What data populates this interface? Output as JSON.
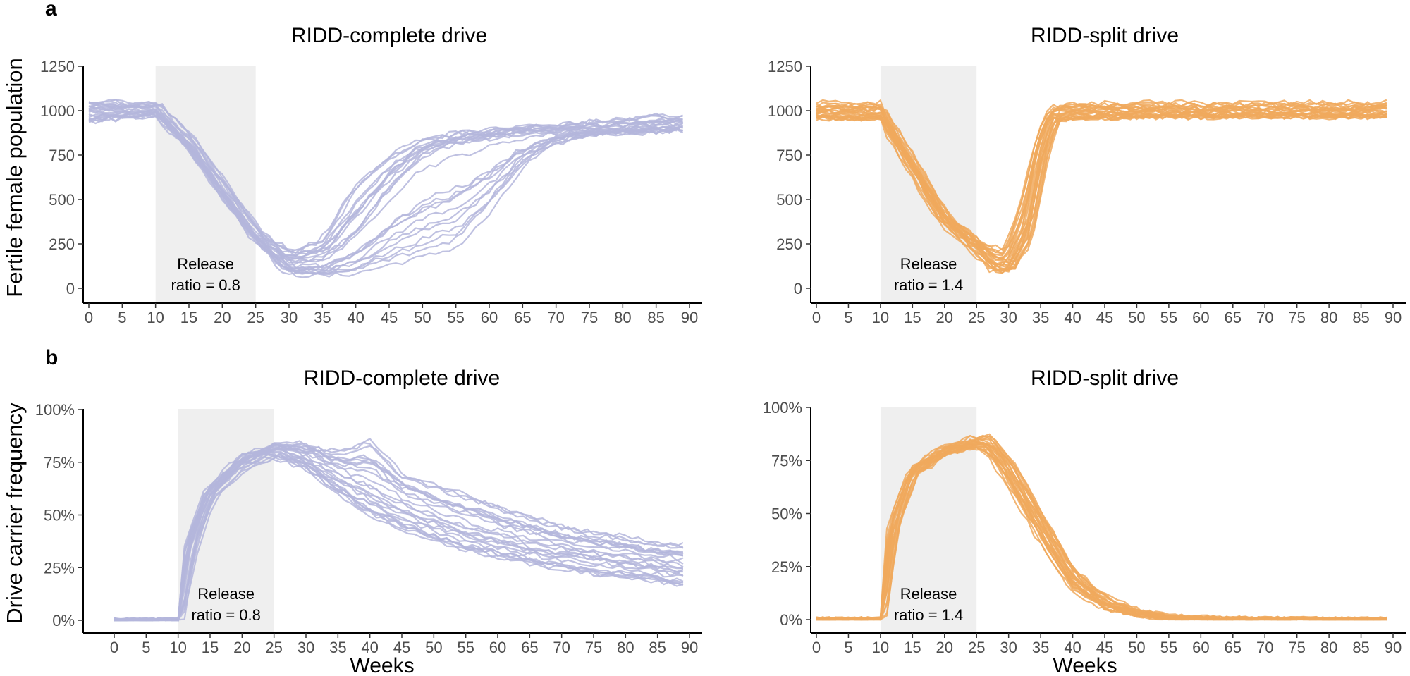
{
  "figure": {
    "label_a": "a",
    "label_b": "b",
    "ylabel_top": "Fertile female population",
    "ylabel_bottom": "Drive carrier frequency",
    "xlabel": "Weeks"
  },
  "colors": {
    "complete": "#b4b6dc",
    "split": "#f0a95d",
    "release_shade": "#efefef"
  },
  "chart_data": [
    {
      "id": "a-complete",
      "type": "line",
      "title": "RIDD-complete drive",
      "xlim": [
        0,
        90
      ],
      "ylim": [
        0,
        1250
      ],
      "x_ticks": [
        0,
        5,
        10,
        15,
        20,
        25,
        30,
        35,
        40,
        45,
        50,
        55,
        60,
        65,
        70,
        75,
        80,
        85,
        90
      ],
      "y_ticks": [
        0,
        250,
        500,
        750,
        1000,
        1250
      ],
      "y_tick_labels": [
        "0",
        "250",
        "500",
        "750",
        "1000",
        "1250"
      ],
      "release_window": [
        10,
        25
      ],
      "annotation": [
        "Release",
        "ratio = 0.8"
      ],
      "color": "#b4b6dc",
      "replicates": 25,
      "grid": false,
      "legend": "none",
      "series_envelope": {
        "x": [
          0,
          10,
          15,
          20,
          25,
          30,
          35,
          40,
          45,
          50,
          55,
          60,
          65,
          70,
          75,
          80,
          85,
          89
        ],
        "median": [
          1000,
          1000,
          820,
          560,
          300,
          150,
          170,
          300,
          550,
          750,
          820,
          850,
          870,
          880,
          890,
          900,
          910,
          920
        ],
        "low": [
          920,
          970,
          790,
          520,
          260,
          60,
          40,
          30,
          25,
          25,
          80,
          320,
          650,
          800,
          860,
          870,
          870,
          880
        ],
        "high": [
          1060,
          1060,
          860,
          600,
          340,
          220,
          290,
          650,
          800,
          860,
          890,
          900,
          920,
          930,
          950,
          960,
          990,
          970
        ]
      }
    },
    {
      "id": "a-split",
      "type": "line",
      "title": "RIDD-split drive",
      "xlim": [
        0,
        90
      ],
      "ylim": [
        0,
        1250
      ],
      "x_ticks": [
        0,
        5,
        10,
        15,
        20,
        25,
        30,
        35,
        40,
        45,
        50,
        55,
        60,
        65,
        70,
        75,
        80,
        85,
        90
      ],
      "y_ticks": [
        0,
        250,
        500,
        750,
        1000,
        1250
      ],
      "y_tick_labels": [
        "0",
        "250",
        "500",
        "750",
        "1000",
        "1250"
      ],
      "release_window": [
        10,
        25
      ],
      "annotation": [
        "Release",
        "ratio = 1.4"
      ],
      "color": "#f0a95d",
      "replicates": 25,
      "grid": false,
      "legend": "none",
      "series_envelope": {
        "x": [
          0,
          10,
          15,
          20,
          25,
          28,
          30,
          33,
          35,
          37,
          40,
          50,
          60,
          70,
          80,
          89
        ],
        "median": [
          1000,
          1000,
          700,
          400,
          250,
          150,
          140,
          400,
          800,
          980,
          1000,
          1000,
          1000,
          1000,
          1000,
          1000
        ],
        "low": [
          950,
          950,
          660,
          360,
          200,
          90,
          80,
          250,
          650,
          930,
          950,
          960,
          960,
          960,
          960,
          960
        ],
        "high": [
          1050,
          1050,
          740,
          440,
          300,
          240,
          240,
          600,
          900,
          1020,
          1040,
          1050,
          1050,
          1050,
          1050,
          1050
        ]
      }
    },
    {
      "id": "b-complete",
      "type": "line",
      "title": "RIDD-complete drive",
      "xlim": [
        0,
        90
      ],
      "ylim": [
        0,
        100
      ],
      "x_ticks": [
        0,
        5,
        10,
        15,
        20,
        25,
        30,
        35,
        40,
        45,
        50,
        55,
        60,
        65,
        70,
        75,
        80,
        85,
        90
      ],
      "y_ticks": [
        0,
        25,
        50,
        75,
        100
      ],
      "y_tick_labels": [
        "0%",
        "25%",
        "50%",
        "75%",
        "100%"
      ],
      "release_window": [
        10,
        25
      ],
      "annotation": [
        "Release",
        "ratio = 0.8"
      ],
      "color": "#b4b6dc",
      "replicates": 25,
      "grid": false,
      "legend": "none",
      "series_envelope": {
        "x": [
          0,
          10,
          12,
          15,
          20,
          25,
          30,
          35,
          40,
          45,
          50,
          55,
          60,
          65,
          70,
          75,
          80,
          85,
          89
        ],
        "median": [
          0,
          0,
          35,
          60,
          75,
          81,
          77,
          68,
          60,
          53,
          47,
          42,
          38,
          35,
          32,
          30,
          28,
          26,
          24
        ],
        "low": [
          0,
          0,
          30,
          57,
          72,
          78,
          72,
          60,
          50,
          43,
          38,
          33,
          30,
          27,
          24,
          22,
          20,
          18,
          16
        ],
        "high": [
          0,
          0,
          40,
          63,
          78,
          84,
          84,
          80,
          86,
          70,
          65,
          60,
          55,
          50,
          45,
          42,
          40,
          37,
          36
        ]
      }
    },
    {
      "id": "b-split",
      "type": "line",
      "title": "RIDD-split drive",
      "xlim": [
        0,
        90
      ],
      "ylim": [
        0,
        100
      ],
      "x_ticks": [
        0,
        5,
        10,
        15,
        20,
        25,
        30,
        35,
        40,
        45,
        50,
        55,
        60,
        65,
        70,
        75,
        80,
        85,
        90
      ],
      "y_ticks": [
        0,
        25,
        50,
        75,
        100
      ],
      "y_tick_labels": [
        "0%",
        "25%",
        "50%",
        "75%",
        "100%"
      ],
      "release_window": [
        10,
        25
      ],
      "annotation": [
        "Release",
        "ratio = 1.4"
      ],
      "color": "#f0a95d",
      "replicates": 25,
      "grid": false,
      "legend": "none",
      "series_envelope": {
        "x": [
          0,
          10,
          12,
          15,
          20,
          25,
          27,
          30,
          35,
          40,
          45,
          50,
          55,
          60,
          70,
          80,
          89
        ],
        "median": [
          0,
          0,
          45,
          70,
          80,
          84,
          83,
          72,
          45,
          20,
          8,
          3,
          1,
          0.5,
          0,
          0,
          0
        ],
        "low": [
          0,
          0,
          40,
          67,
          77,
          81,
          78,
          65,
          38,
          15,
          5,
          2,
          0.5,
          0,
          0,
          0,
          0
        ],
        "high": [
          0,
          0,
          50,
          73,
          83,
          87,
          87,
          78,
          52,
          25,
          12,
          5,
          2,
          1,
          0.5,
          0,
          0
        ]
      }
    }
  ]
}
